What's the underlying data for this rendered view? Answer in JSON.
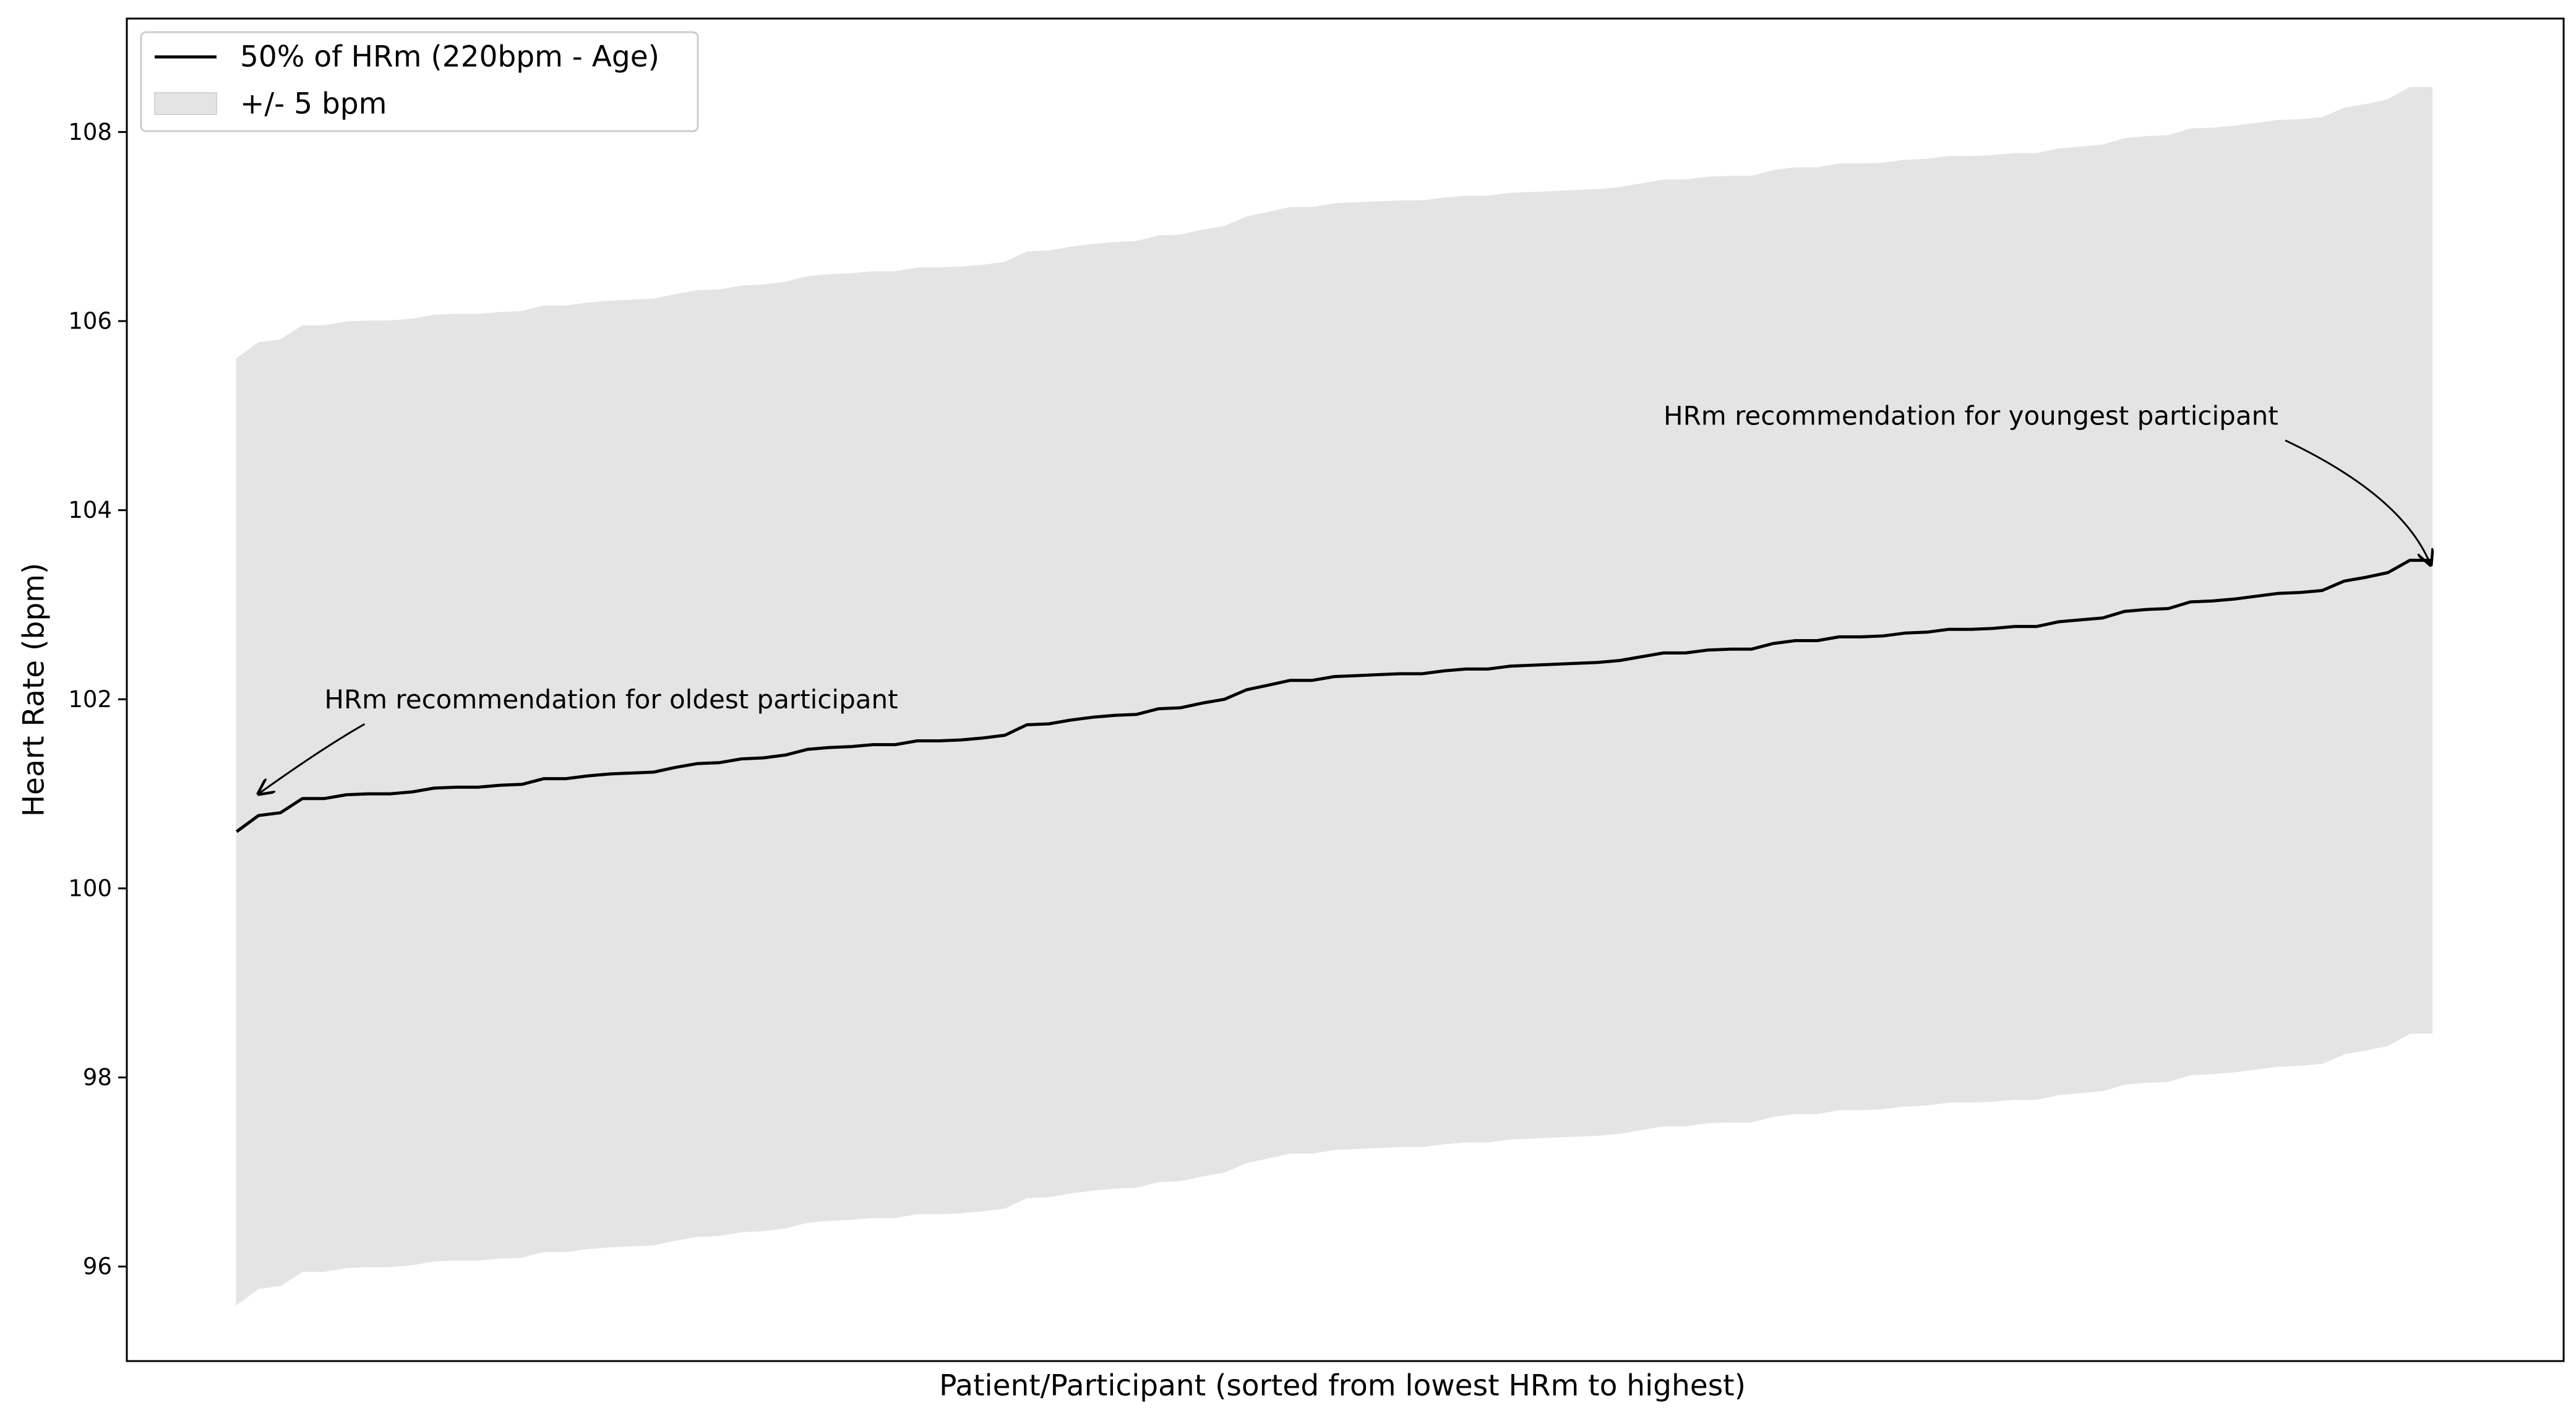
{
  "chart_data": {
    "type": "area",
    "title": "",
    "xlabel": "Patient/Participant (sorted from lowest HRm to highest)",
    "ylabel": "Heart Rate (bpm)",
    "x": [
      1,
      2,
      3,
      4,
      5,
      6,
      7,
      8,
      9,
      10,
      11,
      12,
      13,
      14,
      15,
      16,
      17,
      18,
      19,
      20,
      21,
      22,
      23,
      24,
      25,
      26,
      27,
      28,
      29,
      30,
      31,
      32,
      33,
      34,
      35,
      36,
      37,
      38,
      39,
      40,
      41,
      42,
      43,
      44,
      45,
      46,
      47,
      48,
      49,
      50,
      51,
      52,
      53,
      54,
      55,
      56,
      57,
      58,
      59,
      60,
      61,
      62,
      63,
      64,
      65,
      66,
      67,
      68,
      69,
      70,
      71,
      72,
      73,
      74,
      75,
      76,
      77,
      78,
      79,
      80,
      81,
      82,
      83,
      84,
      85,
      86,
      87,
      88,
      89,
      90,
      91,
      92,
      93,
      94,
      95,
      96,
      97,
      98,
      99,
      100,
      101
    ],
    "xlim": [
      -4,
      107
    ],
    "ylim": [
      95.0,
      109.2
    ],
    "yticks": [
      96,
      98,
      100,
      102,
      104,
      106,
      108
    ],
    "ytick_labels": [
      "96",
      "98",
      "100",
      "102",
      "104",
      "106",
      "108"
    ],
    "xticks_visible": false,
    "grid": false,
    "legend_position": "top-left",
    "series": [
      {
        "name": "50% of HRm (220bpm - Age)",
        "kind": "line",
        "color": "#000000",
        "values": [
          100.6,
          100.77,
          100.8,
          100.95,
          100.95,
          100.99,
          101.0,
          101.0,
          101.02,
          101.06,
          101.07,
          101.07,
          101.09,
          101.1,
          101.16,
          101.16,
          101.19,
          101.21,
          101.22,
          101.23,
          101.28,
          101.32,
          101.33,
          101.37,
          101.38,
          101.41,
          101.47,
          101.49,
          101.5,
          101.52,
          101.52,
          101.56,
          101.56,
          101.57,
          101.59,
          101.62,
          101.73,
          101.74,
          101.78,
          101.81,
          101.83,
          101.84,
          101.9,
          101.91,
          101.96,
          102.0,
          102.1,
          102.15,
          102.2,
          102.2,
          102.24,
          102.25,
          102.26,
          102.27,
          102.27,
          102.3,
          102.32,
          102.32,
          102.35,
          102.36,
          102.37,
          102.38,
          102.39,
          102.41,
          102.45,
          102.49,
          102.49,
          102.52,
          102.53,
          102.53,
          102.59,
          102.62,
          102.62,
          102.66,
          102.66,
          102.67,
          102.7,
          102.71,
          102.74,
          102.74,
          102.75,
          102.77,
          102.77,
          102.82,
          102.84,
          102.86,
          102.93,
          102.95,
          102.96,
          103.03,
          103.04,
          103.06,
          103.09,
          103.12,
          103.13,
          103.15,
          103.25,
          103.29,
          103.34,
          103.47,
          103.47
        ]
      },
      {
        "name": "+/- 5 bpm",
        "kind": "band",
        "color": "#e4e4e4",
        "offset": 5
      }
    ],
    "annotations": [
      {
        "text": "HRm recommendation for oldest participant",
        "point": [
          2,
          101.0
        ],
        "text_pos": [
          5,
          102.0
        ]
      },
      {
        "text": "HRm recommendation for youngest participant",
        "point": [
          101,
          103.5
        ],
        "text_pos": [
          66,
          105.0
        ]
      }
    ]
  }
}
